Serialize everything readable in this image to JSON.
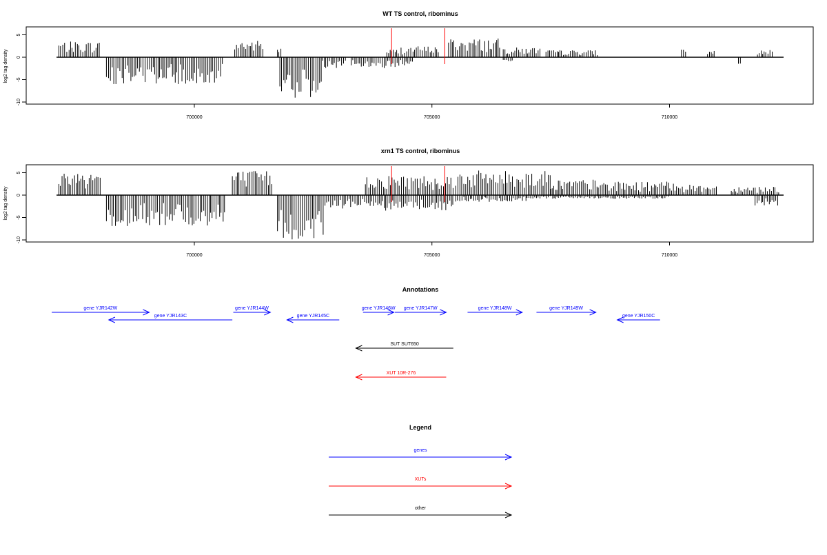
{
  "colors": {
    "gene": "#0000ff",
    "xut": "#ff0000",
    "other": "#000000",
    "bar": "#000000",
    "marker": "#ff0000"
  },
  "chart_data": [
    {
      "type": "bar",
      "title": "WT TS control, ribominus",
      "ylabel": "log2 tag density",
      "xlim": [
        697100,
        712400
      ],
      "ylim": [
        -10,
        6
      ],
      "yticks": [
        5,
        0,
        -5,
        -10
      ],
      "ytick_labels": [
        "5",
        "0",
        "-5",
        "-10"
      ],
      "xticks": [
        700000,
        705000,
        710000
      ],
      "xtick_labels": [
        "700000",
        "705000",
        "710000"
      ],
      "markers": [
        704150,
        705270
      ],
      "series": [
        {
          "strand": "plus",
          "segments": [
            {
              "x0": 697150,
              "x1": 698000,
              "amp": 3.5
            },
            {
              "x0": 700850,
              "x1": 701450,
              "amp": 3.8
            },
            {
              "x0": 701750,
              "x1": 701850,
              "amp": 2.2
            },
            {
              "x0": 704050,
              "x1": 704300,
              "amp": 1.8
            },
            {
              "x0": 704350,
              "x1": 705150,
              "amp": 2.5
            },
            {
              "x0": 705350,
              "x1": 706450,
              "amp": 4.2
            },
            {
              "x0": 706500,
              "x1": 707300,
              "amp": 2.2
            },
            {
              "x0": 707400,
              "x1": 708500,
              "amp": 1.6
            },
            {
              "x0": 710250,
              "x1": 710350,
              "amp": 2.0
            },
            {
              "x0": 710800,
              "x1": 710950,
              "amp": 1.5
            },
            {
              "x0": 711850,
              "x1": 712200,
              "amp": 1.6
            }
          ]
        },
        {
          "strand": "minus",
          "segments": [
            {
              "x0": 698150,
              "x1": 700600,
              "amp": 6.0
            },
            {
              "x0": 701800,
              "x1": 702700,
              "amp": 9.5
            },
            {
              "x0": 702700,
              "x1": 703200,
              "amp": 2.5
            },
            {
              "x0": 703300,
              "x1": 704600,
              "amp": 2.5
            },
            {
              "x0": 706500,
              "x1": 706700,
              "amp": 1.0
            },
            {
              "x0": 711450,
              "x1": 711500,
              "amp": 1.6
            }
          ]
        }
      ]
    },
    {
      "type": "bar",
      "title": "xrn1 TS control, ribominus",
      "ylabel": "log2 tag density",
      "xlim": [
        697100,
        712400
      ],
      "ylim": [
        -10,
        6
      ],
      "yticks": [
        5,
        0,
        -5,
        -10
      ],
      "ytick_labels": [
        "5",
        "0",
        "-5",
        "-10"
      ],
      "xticks": [
        700000,
        705000,
        710000
      ],
      "xtick_labels": [
        "700000",
        "705000",
        "710000"
      ],
      "markers": [
        704150,
        705270
      ],
      "series": [
        {
          "strand": "plus",
          "segments": [
            {
              "x0": 697150,
              "x1": 698050,
              "amp": 5.5
            },
            {
              "x0": 700800,
              "x1": 701650,
              "amp": 5.5
            },
            {
              "x0": 703600,
              "x1": 705450,
              "amp": 4.5
            },
            {
              "x0": 705500,
              "x1": 707500,
              "amp": 5.5
            },
            {
              "x0": 707500,
              "x1": 708500,
              "amp": 3.5
            },
            {
              "x0": 708500,
              "x1": 709300,
              "amp": 3.0
            },
            {
              "x0": 709300,
              "x1": 710300,
              "amp": 3.0
            },
            {
              "x0": 710300,
              "x1": 711000,
              "amp": 2.3
            },
            {
              "x0": 711300,
              "x1": 712300,
              "amp": 2.0
            }
          ]
        },
        {
          "strand": "minus",
          "segments": [
            {
              "x0": 698150,
              "x1": 700650,
              "amp": 7.0
            },
            {
              "x0": 701750,
              "x1": 702750,
              "amp": 10.0
            },
            {
              "x0": 702750,
              "x1": 703700,
              "amp": 3.0
            },
            {
              "x0": 703700,
              "x1": 705450,
              "amp": 3.5
            },
            {
              "x0": 705500,
              "x1": 707000,
              "amp": 1.5
            },
            {
              "x0": 707000,
              "x1": 710000,
              "amp": 0.8
            },
            {
              "x0": 711800,
              "x1": 712300,
              "amp": 2.5
            }
          ]
        }
      ]
    }
  ],
  "annotations": {
    "title": "Annotations",
    "items": [
      {
        "label": "gene YJR142W",
        "type": "gene",
        "strand": "+",
        "start": 697000,
        "end": 699050,
        "row": 0
      },
      {
        "label": "gene YJR143C",
        "type": "gene",
        "strand": "-",
        "start": 698200,
        "end": 700800,
        "row": 1
      },
      {
        "label": "gene YJR144W",
        "type": "gene",
        "strand": "+",
        "start": 700820,
        "end": 701600,
        "row": 0
      },
      {
        "label": "gene YJR145C",
        "type": "gene",
        "strand": "-",
        "start": 701950,
        "end": 703050,
        "row": 1
      },
      {
        "label": "gene YJR146W",
        "type": "gene",
        "strand": "+",
        "start": 703550,
        "end": 704200,
        "row": 0
      },
      {
        "label": "gene YJR147W",
        "type": "gene",
        "strand": "+",
        "start": 704220,
        "end": 705300,
        "row": 0
      },
      {
        "label": "gene YJR148W",
        "type": "gene",
        "strand": "+",
        "start": 705750,
        "end": 706900,
        "row": 0
      },
      {
        "label": "gene YJR149W",
        "type": "gene",
        "strand": "+",
        "start": 707200,
        "end": 708450,
        "row": 0
      },
      {
        "label": "gene YJR150C",
        "type": "gene",
        "strand": "-",
        "start": 708900,
        "end": 709800,
        "row": 1
      },
      {
        "label": "SUT SUT650",
        "type": "other",
        "strand": "-",
        "start": 703400,
        "end": 705450,
        "row": 2
      },
      {
        "label": "XUT 10R-276",
        "type": "xut",
        "strand": "-",
        "start": 703400,
        "end": 705300,
        "row": 3
      }
    ]
  },
  "legend": {
    "title": "Legend",
    "items": [
      {
        "label": "genes",
        "type": "gene"
      },
      {
        "label": "XUTs",
        "type": "xut"
      },
      {
        "label": "other",
        "type": "other"
      }
    ]
  }
}
